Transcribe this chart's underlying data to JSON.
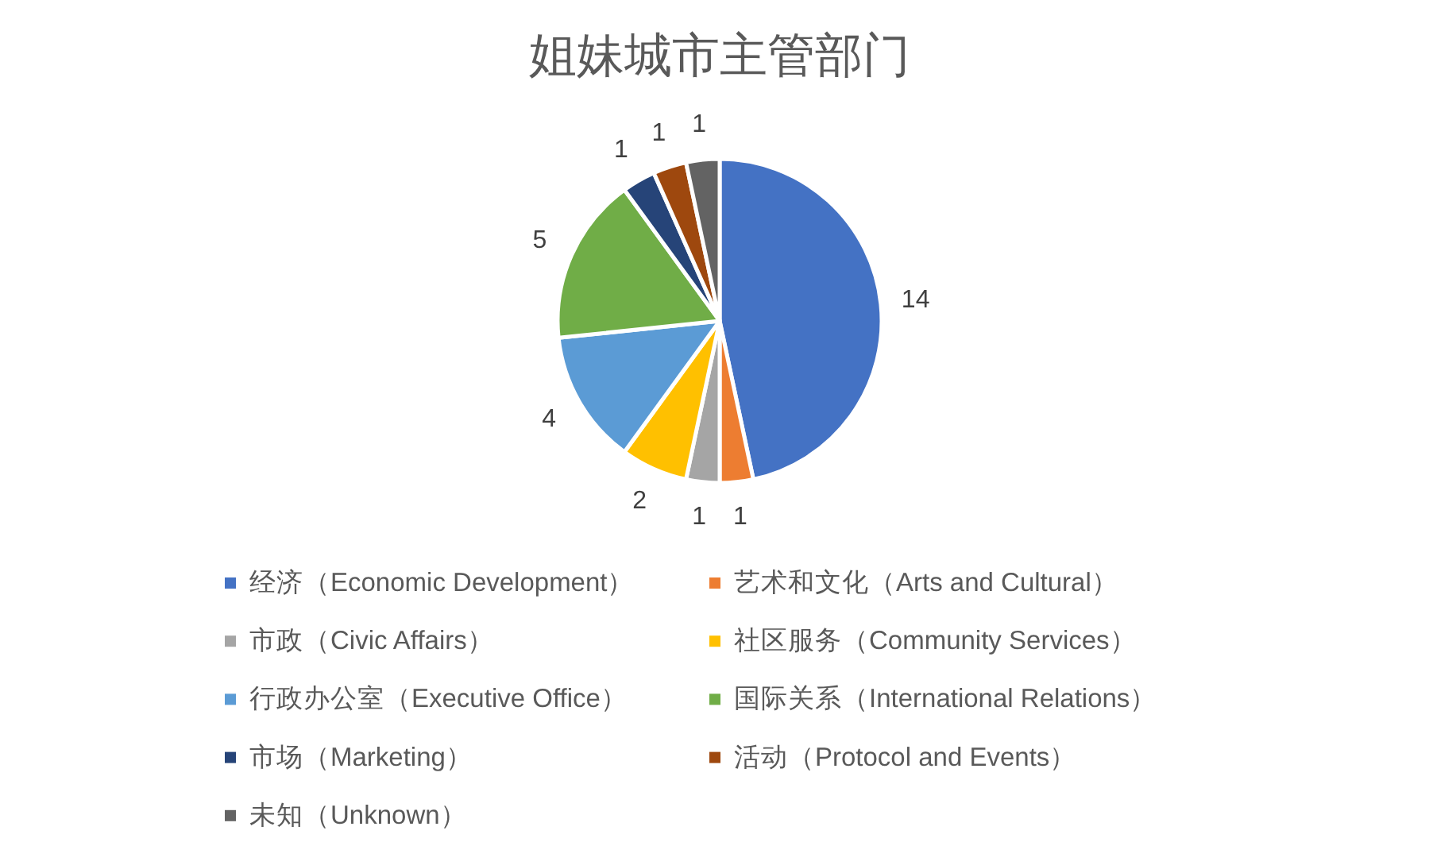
{
  "chart_data": {
    "type": "pie",
    "title": "姐妹城市主管部门",
    "categories": [
      "经济（Economic Development）",
      "艺术和文化（Arts and Cultural）",
      "市政（Civic Affairs）",
      "社区服务（Community Services）",
      "行政办公室（Executive Office）",
      "国际关系（International Relations）",
      "市场（Marketing）",
      "活动（Protocol and Events）",
      "未知（Unknown）"
    ],
    "values": [
      14,
      1,
      1,
      2,
      4,
      5,
      1,
      1,
      1
    ],
    "colors": [
      "#4472c4",
      "#ed7d31",
      "#a5a5a5",
      "#ffc000",
      "#5b9bd5",
      "#70ad47",
      "#264478",
      "#9e480e",
      "#636363"
    ],
    "data_labels": true,
    "legend": "bottom"
  }
}
